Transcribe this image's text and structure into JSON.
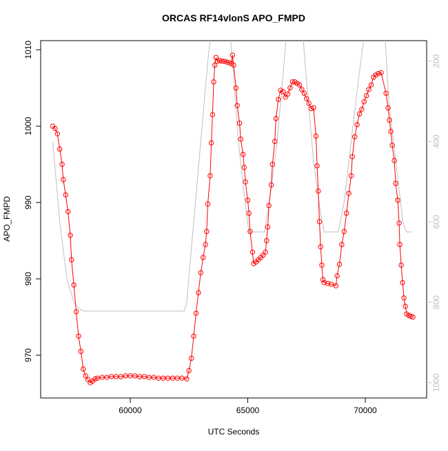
{
  "chart_data": {
    "type": "line",
    "title": "ORCAS RF14vlonS APO_FMPD",
    "x_label": "UTC Seconds",
    "y_label": "APO_FMPD",
    "xlim": [
      56188,
      72610
    ],
    "xticks": [
      60000,
      65000,
      70000
    ],
    "ylim": [
      964.4,
      1011.2
    ],
    "yticks": [
      970,
      980,
      990,
      1000,
      1010
    ],
    "y2lim": [
      1038,
      149
    ],
    "y2ticks": [
      200,
      400,
      600,
      800,
      1000
    ],
    "series": [
      {
        "name": "APO_FMPD",
        "color": "#ff0000",
        "marker": "circle",
        "x": [
          56700,
          56800,
          56900,
          57000,
          57100,
          57150,
          57250,
          57350,
          57450,
          57500,
          57600,
          57700,
          57800,
          57900,
          58000,
          58100,
          58200,
          58300,
          58400,
          58500,
          58600,
          58800,
          59000,
          59200,
          59400,
          59600,
          59800,
          60000,
          60200,
          60400,
          60600,
          60800,
          61000,
          61200,
          61400,
          61600,
          61800,
          62000,
          62200,
          62400,
          62500,
          62600,
          62700,
          62800,
          62900,
          63000,
          63100,
          63200,
          63250,
          63300,
          63400,
          63450,
          63500,
          63550,
          63600,
          63650,
          63700,
          63800,
          63900,
          64000,
          64100,
          64200,
          64300,
          64350,
          64400,
          64500,
          64550,
          64650,
          64700,
          64800,
          64850,
          64900,
          65000,
          65050,
          65100,
          65200,
          65250,
          65350,
          65450,
          65550,
          65650,
          65750,
          65800,
          65850,
          65900,
          66000,
          66050,
          66150,
          66200,
          66300,
          66400,
          66500,
          66600,
          66700,
          66800,
          66900,
          67000,
          67100,
          67200,
          67300,
          67400,
          67500,
          67600,
          67700,
          67800,
          67900,
          67950,
          68000,
          68050,
          68100,
          68150,
          68200,
          68250,
          68400,
          68550,
          68750,
          68800,
          68900,
          69000,
          69100,
          69200,
          69300,
          69400,
          69450,
          69550,
          69650,
          69750,
          69850,
          69950,
          70050,
          70150,
          70250,
          70350,
          70450,
          70550,
          70675,
          70882,
          70969,
          71028,
          71087,
          71146,
          71234,
          71293,
          71381,
          71440,
          71469,
          71528,
          71586,
          71645,
          71704,
          71762,
          71850,
          71938,
          72026
        ],
        "values": [
          1000,
          999.7,
          999,
          997,
          995,
          993,
          991,
          988.8,
          985.7,
          982.5,
          979.2,
          975.7,
          972.5,
          970.5,
          968.2,
          967.3,
          966.8,
          966.4,
          966.6,
          966.9,
          967,
          967.1,
          967.1,
          967.2,
          967.2,
          967.2,
          967.3,
          967.3,
          967.3,
          967.2,
          967.2,
          967.1,
          967.1,
          967,
          967,
          967,
          967,
          967,
          967,
          966.9,
          968,
          969.6,
          972.5,
          975.5,
          978.2,
          980.8,
          982.8,
          984.5,
          986.2,
          989.8,
          993.5,
          997.8,
          1001.5,
          1005.8,
          1008,
          1009,
          1008.5,
          1008.6,
          1008.5,
          1008.5,
          1008.4,
          1008.3,
          1008.2,
          1009.3,
          1008,
          1005,
          1002.7,
          1000.4,
          998.3,
          996.3,
          994.6,
          992.7,
          990.3,
          988.6,
          986.2,
          983.5,
          982,
          982.2,
          982.5,
          982.8,
          983.1,
          983.5,
          985,
          986.8,
          989.6,
          992.3,
          995,
          998,
          1001,
          1003.5,
          1004.7,
          1004.5,
          1003.8,
          1004.2,
          1005,
          1005.8,
          1005.8,
          1005.6,
          1005.4,
          1004.8,
          1004.3,
          1003.6,
          1003,
          1002.3,
          1002.4,
          998.7,
          994.8,
          991.5,
          987.5,
          984.2,
          981.8,
          979.9,
          979.5,
          979.4,
          979.3,
          979.1,
          980.4,
          981.9,
          984.5,
          986.2,
          988.6,
          991.2,
          993.5,
          996,
          998.6,
          1000.2,
          1001.6,
          1002.2,
          1003.2,
          1004,
          1004.8,
          1005.4,
          1006.4,
          1006.7,
          1006.9,
          1007,
          1004.3,
          1002.4,
          1000.8,
          999.3,
          997.5,
          995.5,
          992.5,
          990.3,
          987.3,
          984.5,
          981.8,
          979.5,
          977.5,
          976.4,
          975.4,
          975.2,
          975.1,
          975
        ]
      },
      {
        "color": "#bebebe",
        "axis": "y2",
        "x": [
          56700,
          57000,
          57300,
          57600,
          57800,
          58000,
          62300,
          62400,
          62700,
          63000,
          63300,
          63500,
          64200,
          64350,
          64600,
          64900,
          65050,
          65700,
          65900,
          66250,
          66700,
          67300,
          67500,
          67800,
          68100,
          68250,
          68850,
          69100,
          69400,
          69700,
          69900,
          70100,
          70800,
          71000,
          71300,
          71600,
          71750,
          72000
        ],
        "values": [
          400,
          600,
          740,
          800,
          815,
          822,
          822,
          800,
          600,
          400,
          200,
          100,
          100,
          200,
          400,
          560,
          625,
          625,
          560,
          400,
          100,
          100,
          250,
          450,
          580,
          625,
          625,
          550,
          400,
          250,
          160,
          100,
          100,
          300,
          450,
          600,
          625,
          625
        ]
      }
    ]
  }
}
